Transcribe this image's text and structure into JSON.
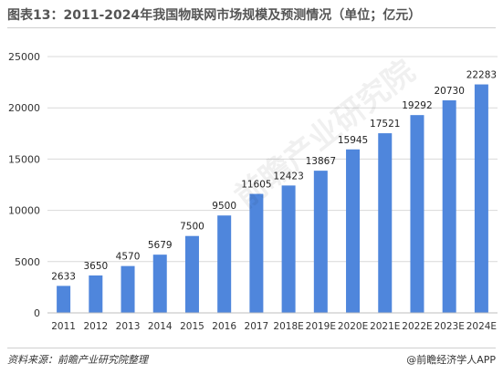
{
  "title": "图表13：2011-2024年我国物联网市场规模及预测情况（单位；亿元）",
  "source": "资料来源：前瞻产业研究院整理",
  "credit": "@前瞻经济学人APP",
  "watermark": "前瞻产业研究院",
  "colors": {
    "bar": "#4F86DC",
    "grid": "#d9d9d9",
    "axis": "#bfbfbf"
  },
  "chart_data": {
    "type": "bar",
    "title": "",
    "xlabel": "",
    "ylabel": "",
    "categories": [
      "2011",
      "2012",
      "2013",
      "2014",
      "2015",
      "2016",
      "2017",
      "2018E",
      "2019E",
      "2020E",
      "2021E",
      "2022E",
      "2023E",
      "2024E"
    ],
    "values": [
      2633,
      3650,
      4570,
      5679,
      7500,
      9500,
      11605,
      12423,
      13867,
      15945,
      17521,
      19292,
      20730,
      22283
    ],
    "ylim": [
      0,
      25000
    ],
    "yticks": [
      0,
      5000,
      10000,
      15000,
      20000,
      25000
    ],
    "grid": true,
    "data_labels": true,
    "legend": "none"
  }
}
